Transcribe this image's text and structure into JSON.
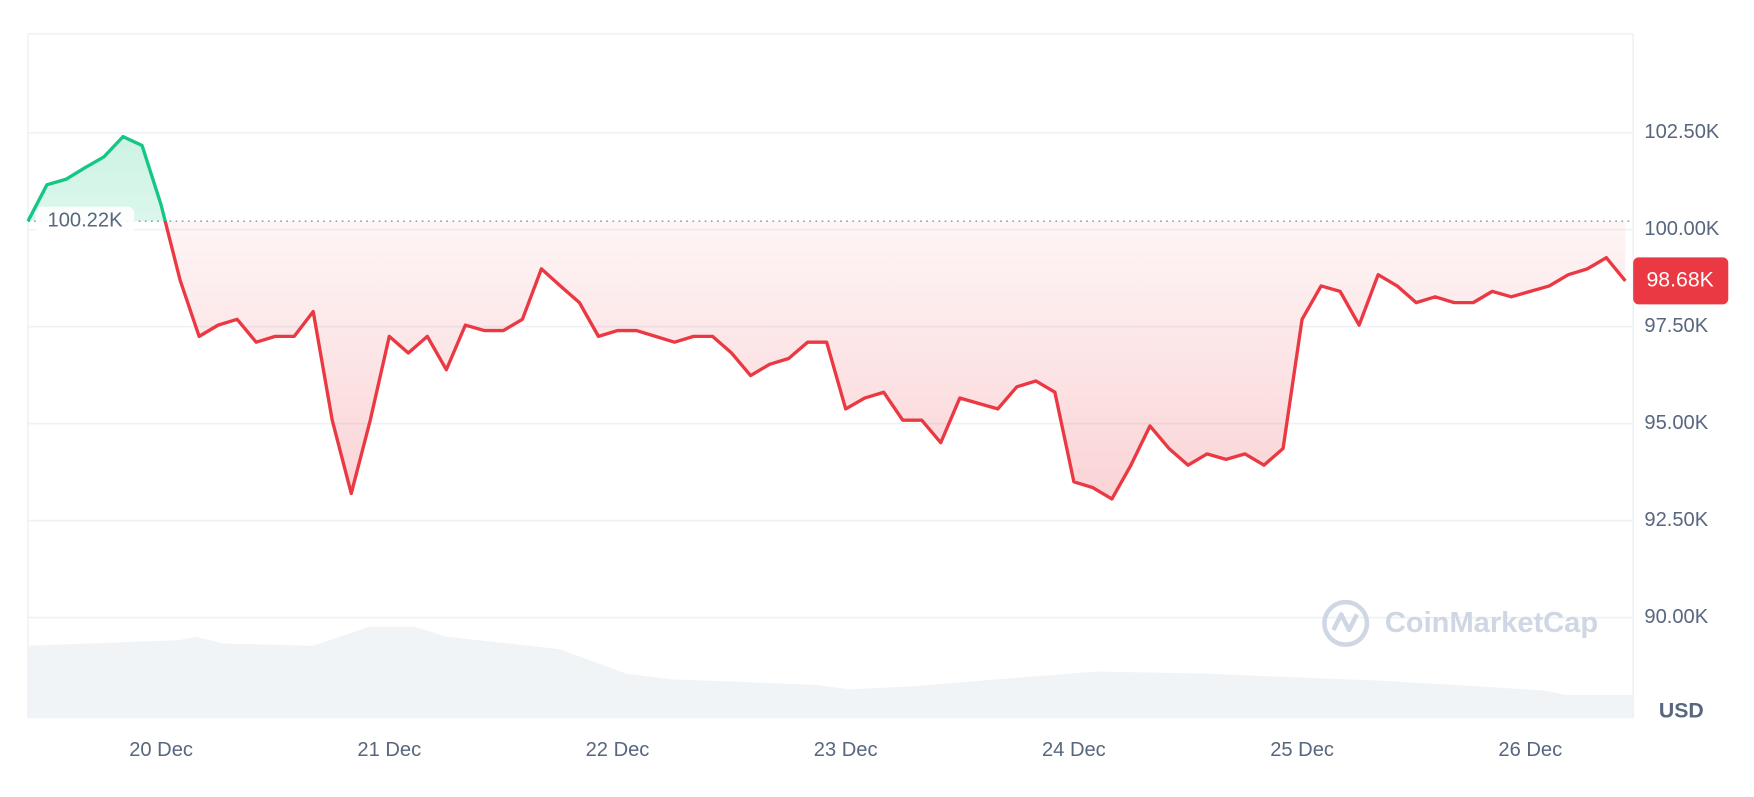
{
  "chart_data": {
    "type": "line",
    "categories": [
      null,
      null,
      null,
      null,
      null,
      null,
      null,
      "20 Dec",
      null,
      null,
      null,
      null,
      null,
      null,
      null,
      null,
      null,
      null,
      null,
      "21 Dec",
      null,
      null,
      null,
      null,
      null,
      null,
      null,
      null,
      null,
      null,
      null,
      "22 Dec",
      null,
      null,
      null,
      null,
      null,
      null,
      null,
      null,
      null,
      null,
      null,
      "23 Dec",
      null,
      null,
      null,
      null,
      null,
      null,
      null,
      null,
      null,
      null,
      null,
      "24 Dec",
      null,
      null,
      null,
      null,
      null,
      null,
      null,
      null,
      null,
      null,
      null,
      "25 Dec",
      null,
      null,
      null,
      null,
      null,
      null,
      null,
      null,
      null,
      null,
      null,
      "26 Dec",
      null,
      null,
      null,
      null,
      null
    ],
    "values": [
      100.22,
      101.16,
      101.3,
      101.6,
      101.88,
      102.4,
      102.17,
      100.64,
      98.7,
      97.25,
      97.54,
      97.69,
      97.1,
      97.25,
      97.25,
      97.89,
      95.09,
      93.2,
      95.09,
      97.25,
      96.82,
      97.25,
      96.39,
      97.54,
      97.4,
      97.4,
      97.69,
      98.99,
      98.55,
      98.12,
      97.25,
      97.4,
      97.4,
      97.25,
      97.1,
      97.25,
      97.25,
      96.82,
      96.24,
      96.53,
      96.68,
      97.1,
      97.1,
      95.38,
      95.66,
      95.81,
      95.09,
      95.09,
      94.51,
      95.66,
      95.52,
      95.38,
      95.95,
      96.1,
      95.81,
      93.5,
      93.35,
      93.06,
      93.93,
      94.94,
      94.36,
      93.93,
      94.22,
      94.08,
      94.22,
      93.93,
      94.36,
      97.69,
      98.55,
      98.41,
      97.54,
      98.84,
      98.55,
      98.12,
      98.27,
      98.12,
      98.12,
      98.41,
      98.27,
      98.41,
      98.55,
      98.84,
      98.99,
      99.28,
      98.68
    ],
    "up_color": "#16c784",
    "down_color": "#ea3943",
    "baseline": {
      "value": 100.22,
      "label": "100.22K"
    },
    "last_price": {
      "value": 98.68,
      "label": "98.68K"
    },
    "ylim": [
      87.4,
      105.05
    ],
    "yticks": [
      {
        "value": 90,
        "label": "90.00K"
      },
      {
        "value": 92.5,
        "label": "92.50K"
      },
      {
        "value": 95,
        "label": "95.00K"
      },
      {
        "value": 97.5,
        "label": "97.50K"
      },
      {
        "value": 100,
        "label": "100.00K"
      },
      {
        "value": 102.5,
        "label": "102.50K"
      }
    ],
    "grid": true,
    "currency": "USD",
    "watermark": "CoinMarketCap"
  }
}
